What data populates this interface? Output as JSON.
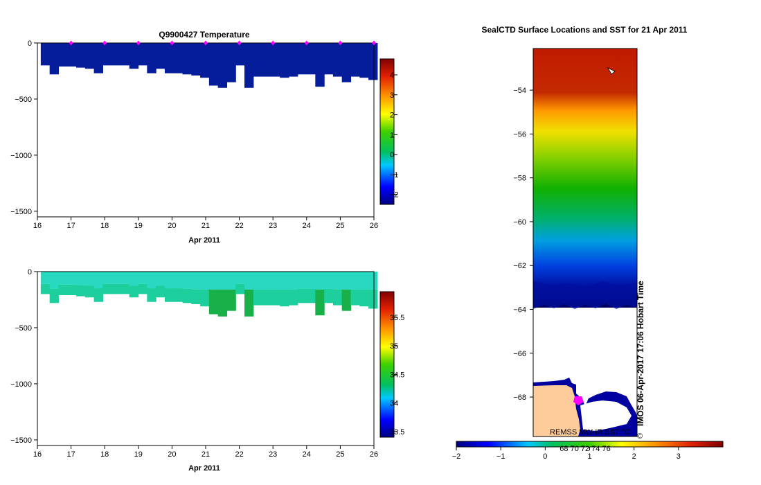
{
  "chart_data": [
    {
      "type": "heatmap",
      "title": "Q9900427  Temperature",
      "xlabel": "Apr 2011",
      "ylabel": "",
      "xlim": [
        16,
        26
      ],
      "ylim": [
        -1550,
        0
      ],
      "x_ticks": [
        16,
        17,
        18,
        19,
        20,
        21,
        22,
        23,
        24,
        25,
        26
      ],
      "y_ticks": [
        0,
        -500,
        -1000,
        -1500
      ],
      "profile_markers_x": [
        17,
        18,
        19,
        20,
        21,
        22,
        23,
        24,
        25,
        26
      ],
      "profile_depths": [
        200,
        280,
        210,
        210,
        220,
        230,
        270,
        200,
        200,
        200,
        230,
        200,
        270,
        230,
        270,
        270,
        280,
        290,
        310,
        380,
        400,
        350,
        200,
        400,
        300,
        300,
        300,
        310,
        300,
        280,
        280,
        390,
        280,
        300,
        350,
        300,
        310,
        330
      ],
      "colorbar": {
        "ticks": [
          4,
          3,
          2,
          1,
          0,
          -1,
          -2
        ],
        "range": [
          -2.5,
          4.8
        ]
      },
      "value_description": "near-uniform temperature about -1.8 °C throughout"
    },
    {
      "type": "heatmap",
      "title": "",
      "xlabel": "Apr 2011",
      "xlim": [
        16,
        26
      ],
      "ylim": [
        -1550,
        0
      ],
      "x_ticks": [
        16,
        17,
        18,
        19,
        20,
        21,
        22,
        23,
        24,
        25,
        26
      ],
      "y_ticks": [
        0,
        -500,
        -1000,
        -1500
      ],
      "colorbar": {
        "ticks": [
          35.5,
          35,
          34.5,
          34,
          33.5
        ],
        "range": [
          33.4,
          35.95
        ]
      },
      "value_description": "salinity about 34.2 near surface, 34.5 at depth"
    },
    {
      "type": "heatmap",
      "title": "SealCTD Surface Locations and SST for 21 Apr 2011",
      "y_ticks": [
        -54,
        -56,
        -58,
        -60,
        -62,
        -64,
        -66,
        -68
      ],
      "ylim": [
        -69.8,
        -52.1
      ],
      "colorbar": {
        "ticks": [
          -2,
          -1,
          0,
          1,
          2,
          3
        ],
        "range": [
          -2,
          4
        ]
      },
      "sst_by_latitude": [
        {
          "lat": -52.5,
          "sst": 3.7
        },
        {
          "lat": -54,
          "sst": 3.4
        },
        {
          "lat": -55.5,
          "sst": 2.6
        },
        {
          "lat": -56.5,
          "sst": 1.7
        },
        {
          "lat": -57.5,
          "sst": 1.2
        },
        {
          "lat": -58.5,
          "sst": 0.8
        },
        {
          "lat": -59.5,
          "sst": 0.5
        },
        {
          "lat": -60.5,
          "sst": 0.1
        },
        {
          "lat": -61.5,
          "sst": -0.3
        },
        {
          "lat": -62.5,
          "sst": -0.7
        },
        {
          "lat": -63.5,
          "sst": -1.3
        },
        {
          "lat": -64,
          "sst": -1.8
        }
      ]
    }
  ],
  "texts": {
    "map_colorbar_overlay_ticks": "68    70    72    74    76",
    "map_credit": "REMSS MW-IR SST °C",
    "map_timestamp": "IMOS 06-Apr-2017 17:06 Hobart Time",
    "copyright": "©"
  },
  "colors": {
    "land": "#fdcc9a",
    "profile_marker": "#ff00ff",
    "temperature_fill": "#061d9b"
  }
}
